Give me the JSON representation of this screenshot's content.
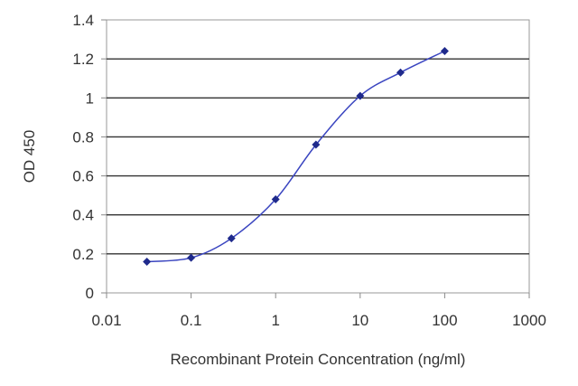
{
  "chart_data": {
    "type": "scatter",
    "title": "",
    "xlabel": "Recombinant Protein Concentration (ng/ml)",
    "ylabel": "OD 450",
    "xscale": "log",
    "xlim": [
      0.01,
      1000
    ],
    "ylim": [
      0,
      1.4
    ],
    "grid": "horizontal",
    "legend": "none",
    "xticks": [
      "0.01",
      "0.1",
      "1",
      "10",
      "100",
      "1000"
    ],
    "yticks": [
      "0",
      "0.2",
      "0.4",
      "0.6",
      "0.8",
      "1",
      "1.2",
      "1.4"
    ],
    "series": [
      {
        "x": [
          0.03,
          0.1,
          0.3,
          1,
          3,
          10,
          30,
          100
        ],
        "y": [
          0.16,
          0.18,
          0.28,
          0.48,
          0.76,
          1.01,
          1.13,
          1.24
        ],
        "fit": "sigmoid"
      }
    ],
    "colors": {
      "points": "#1f2a8c",
      "line": "#3a45c0",
      "grid": "#333333",
      "frame": "#999999"
    }
  }
}
